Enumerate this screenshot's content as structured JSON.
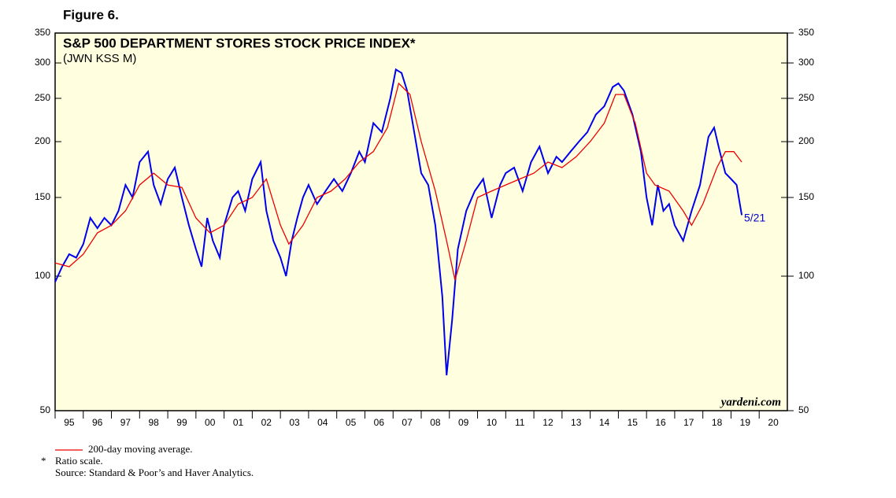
{
  "figure": "Figure 6.",
  "chart_data": {
    "type": "line",
    "title": "S&P 500 DEPARTMENT STORES STOCK PRICE INDEX*",
    "subtitle": "(JWN KSS M)",
    "annotation": "5/21",
    "watermark": "yardeni.com",
    "yscale": "log",
    "xlim": [
      1995,
      2021
    ],
    "xticks": [
      {
        "value": 1995,
        "label": "95"
      },
      {
        "value": 1996,
        "label": "96"
      },
      {
        "value": 1997,
        "label": "97"
      },
      {
        "value": 1998,
        "label": "98"
      },
      {
        "value": 1999,
        "label": "99"
      },
      {
        "value": 2000,
        "label": "00"
      },
      {
        "value": 2001,
        "label": "01"
      },
      {
        "value": 2002,
        "label": "02"
      },
      {
        "value": 2003,
        "label": "03"
      },
      {
        "value": 2004,
        "label": "04"
      },
      {
        "value": 2005,
        "label": "05"
      },
      {
        "value": 2006,
        "label": "06"
      },
      {
        "value": 2007,
        "label": "07"
      },
      {
        "value": 2008,
        "label": "08"
      },
      {
        "value": 2009,
        "label": "09"
      },
      {
        "value": 2010,
        "label": "10"
      },
      {
        "value": 2011,
        "label": "11"
      },
      {
        "value": 2012,
        "label": "12"
      },
      {
        "value": 2013,
        "label": "13"
      },
      {
        "value": 2014,
        "label": "14"
      },
      {
        "value": 2015,
        "label": "15"
      },
      {
        "value": 2016,
        "label": "16"
      },
      {
        "value": 2017,
        "label": "17"
      },
      {
        "value": 2018,
        "label": "18"
      },
      {
        "value": 2019,
        "label": "19"
      },
      {
        "value": 2020,
        "label": "20"
      }
    ],
    "ylim": [
      50,
      350
    ],
    "yticks": [
      50,
      100,
      150,
      200,
      250,
      300,
      350
    ],
    "y2lim": [
      50,
      350
    ],
    "y2ticks": [
      50,
      100,
      150,
      200,
      250,
      300,
      350
    ],
    "series": [
      {
        "color": "#0000ee",
        "x": [
          1995.0,
          1995.25,
          1995.5,
          1995.75,
          1996.0,
          1996.25,
          1996.5,
          1996.75,
          1997.0,
          1997.25,
          1997.5,
          1997.75,
          1998.0,
          1998.3,
          1998.5,
          1998.75,
          1999.0,
          1999.25,
          1999.5,
          1999.75,
          2000.0,
          2000.2,
          2000.4,
          2000.6,
          2000.85,
          2001.0,
          2001.3,
          2001.5,
          2001.75,
          2002.0,
          2002.3,
          2002.5,
          2002.75,
          2003.0,
          2003.2,
          2003.4,
          2003.6,
          2003.8,
          2004.0,
          2004.3,
          2004.6,
          2004.9,
          2005.2,
          2005.5,
          2005.8,
          2006.0,
          2006.3,
          2006.6,
          2006.9,
          2007.1,
          2007.3,
          2007.5,
          2007.75,
          2008.0,
          2008.25,
          2008.5,
          2008.75,
          2008.9,
          2009.1,
          2009.3,
          2009.6,
          2009.9,
          2010.2,
          2010.5,
          2010.8,
          2011.0,
          2011.3,
          2011.6,
          2011.9,
          2012.2,
          2012.5,
          2012.8,
          2013.0,
          2013.3,
          2013.6,
          2013.9,
          2014.2,
          2014.5,
          2014.8,
          2015.0,
          2015.2,
          2015.5,
          2015.8,
          2016.0,
          2016.2,
          2016.4,
          2016.6,
          2016.8,
          2017.0,
          2017.3,
          2017.6,
          2017.9,
          2018.2,
          2018.4,
          2018.6,
          2018.8,
          2019.0,
          2019.2,
          2019.38
        ],
        "values": [
          97,
          105,
          112,
          110,
          118,
          135,
          128,
          135,
          130,
          140,
          160,
          150,
          180,
          190,
          160,
          145,
          165,
          175,
          150,
          130,
          115,
          105,
          135,
          120,
          110,
          130,
          150,
          155,
          140,
          165,
          180,
          140,
          120,
          110,
          100,
          120,
          135,
          150,
          160,
          145,
          155,
          165,
          155,
          170,
          190,
          180,
          220,
          210,
          250,
          290,
          285,
          260,
          210,
          170,
          160,
          130,
          90,
          60,
          80,
          115,
          140,
          155,
          165,
          135,
          160,
          170,
          175,
          155,
          180,
          195,
          170,
          185,
          180,
          190,
          200,
          210,
          230,
          240,
          265,
          270,
          260,
          230,
          190,
          150,
          130,
          160,
          140,
          145,
          130,
          120,
          140,
          160,
          205,
          215,
          190,
          170,
          165,
          160,
          137
        ]
      },
      {
        "name": "200-day moving average.",
        "color": "#ee0000",
        "x": [
          1995.0,
          1995.5,
          1996.0,
          1996.5,
          1997.0,
          1997.5,
          1998.0,
          1998.5,
          1999.0,
          1999.5,
          2000.0,
          2000.5,
          2001.0,
          2001.5,
          2002.0,
          2002.5,
          2003.0,
          2003.3,
          2003.8,
          2004.3,
          2004.8,
          2005.3,
          2005.8,
          2006.3,
          2006.8,
          2007.2,
          2007.6,
          2008.0,
          2008.5,
          2008.9,
          2009.2,
          2009.6,
          2010.0,
          2010.5,
          2011.0,
          2011.5,
          2012.0,
          2012.5,
          2013.0,
          2013.5,
          2014.0,
          2014.5,
          2014.9,
          2015.2,
          2015.6,
          2016.0,
          2016.3,
          2016.8,
          2017.3,
          2017.6,
          2018.0,
          2018.5,
          2018.8,
          2019.1,
          2019.38
        ],
        "values": [
          107,
          105,
          112,
          125,
          130,
          140,
          160,
          170,
          160,
          158,
          135,
          125,
          130,
          145,
          150,
          165,
          130,
          118,
          130,
          150,
          155,
          165,
          180,
          190,
          215,
          270,
          255,
          200,
          155,
          120,
          98,
          120,
          150,
          155,
          160,
          165,
          170,
          180,
          175,
          185,
          200,
          220,
          255,
          255,
          220,
          170,
          160,
          155,
          140,
          130,
          145,
          175,
          190,
          190,
          180
        ]
      }
    ]
  },
  "notes": {
    "star": "*",
    "ratio": "Ratio scale.",
    "source": "Source: Standard & Poor’s and Haver Analytics."
  }
}
